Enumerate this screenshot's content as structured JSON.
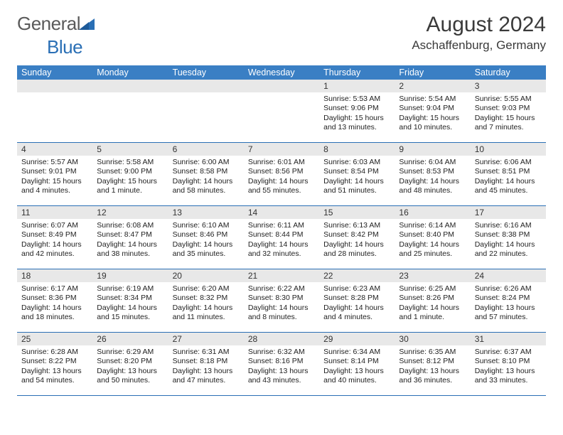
{
  "logo": {
    "text1": "General",
    "text2": "Blue"
  },
  "title": "August 2024",
  "subtitle": "Aschaffenburg, Germany",
  "colors": {
    "header_bg": "#3a7fc4",
    "header_fg": "#ffffff",
    "daystrip_bg": "#e8e8e8",
    "border": "#2a6fb5",
    "logo_gray": "#5a5a5a",
    "logo_blue": "#2a6fb5",
    "text": "#222222"
  },
  "day_names": [
    "Sunday",
    "Monday",
    "Tuesday",
    "Wednesday",
    "Thursday",
    "Friday",
    "Saturday"
  ],
  "weeks": [
    [
      {
        "num": "",
        "sunrise": "",
        "sunset": "",
        "daylight": ""
      },
      {
        "num": "",
        "sunrise": "",
        "sunset": "",
        "daylight": ""
      },
      {
        "num": "",
        "sunrise": "",
        "sunset": "",
        "daylight": ""
      },
      {
        "num": "",
        "sunrise": "",
        "sunset": "",
        "daylight": ""
      },
      {
        "num": "1",
        "sunrise": "Sunrise: 5:53 AM",
        "sunset": "Sunset: 9:06 PM",
        "daylight": "Daylight: 15 hours and 13 minutes."
      },
      {
        "num": "2",
        "sunrise": "Sunrise: 5:54 AM",
        "sunset": "Sunset: 9:04 PM",
        "daylight": "Daylight: 15 hours and 10 minutes."
      },
      {
        "num": "3",
        "sunrise": "Sunrise: 5:55 AM",
        "sunset": "Sunset: 9:03 PM",
        "daylight": "Daylight: 15 hours and 7 minutes."
      }
    ],
    [
      {
        "num": "4",
        "sunrise": "Sunrise: 5:57 AM",
        "sunset": "Sunset: 9:01 PM",
        "daylight": "Daylight: 15 hours and 4 minutes."
      },
      {
        "num": "5",
        "sunrise": "Sunrise: 5:58 AM",
        "sunset": "Sunset: 9:00 PM",
        "daylight": "Daylight: 15 hours and 1 minute."
      },
      {
        "num": "6",
        "sunrise": "Sunrise: 6:00 AM",
        "sunset": "Sunset: 8:58 PM",
        "daylight": "Daylight: 14 hours and 58 minutes."
      },
      {
        "num": "7",
        "sunrise": "Sunrise: 6:01 AM",
        "sunset": "Sunset: 8:56 PM",
        "daylight": "Daylight: 14 hours and 55 minutes."
      },
      {
        "num": "8",
        "sunrise": "Sunrise: 6:03 AM",
        "sunset": "Sunset: 8:54 PM",
        "daylight": "Daylight: 14 hours and 51 minutes."
      },
      {
        "num": "9",
        "sunrise": "Sunrise: 6:04 AM",
        "sunset": "Sunset: 8:53 PM",
        "daylight": "Daylight: 14 hours and 48 minutes."
      },
      {
        "num": "10",
        "sunrise": "Sunrise: 6:06 AM",
        "sunset": "Sunset: 8:51 PM",
        "daylight": "Daylight: 14 hours and 45 minutes."
      }
    ],
    [
      {
        "num": "11",
        "sunrise": "Sunrise: 6:07 AM",
        "sunset": "Sunset: 8:49 PM",
        "daylight": "Daylight: 14 hours and 42 minutes."
      },
      {
        "num": "12",
        "sunrise": "Sunrise: 6:08 AM",
        "sunset": "Sunset: 8:47 PM",
        "daylight": "Daylight: 14 hours and 38 minutes."
      },
      {
        "num": "13",
        "sunrise": "Sunrise: 6:10 AM",
        "sunset": "Sunset: 8:46 PM",
        "daylight": "Daylight: 14 hours and 35 minutes."
      },
      {
        "num": "14",
        "sunrise": "Sunrise: 6:11 AM",
        "sunset": "Sunset: 8:44 PM",
        "daylight": "Daylight: 14 hours and 32 minutes."
      },
      {
        "num": "15",
        "sunrise": "Sunrise: 6:13 AM",
        "sunset": "Sunset: 8:42 PM",
        "daylight": "Daylight: 14 hours and 28 minutes."
      },
      {
        "num": "16",
        "sunrise": "Sunrise: 6:14 AM",
        "sunset": "Sunset: 8:40 PM",
        "daylight": "Daylight: 14 hours and 25 minutes."
      },
      {
        "num": "17",
        "sunrise": "Sunrise: 6:16 AM",
        "sunset": "Sunset: 8:38 PM",
        "daylight": "Daylight: 14 hours and 22 minutes."
      }
    ],
    [
      {
        "num": "18",
        "sunrise": "Sunrise: 6:17 AM",
        "sunset": "Sunset: 8:36 PM",
        "daylight": "Daylight: 14 hours and 18 minutes."
      },
      {
        "num": "19",
        "sunrise": "Sunrise: 6:19 AM",
        "sunset": "Sunset: 8:34 PM",
        "daylight": "Daylight: 14 hours and 15 minutes."
      },
      {
        "num": "20",
        "sunrise": "Sunrise: 6:20 AM",
        "sunset": "Sunset: 8:32 PM",
        "daylight": "Daylight: 14 hours and 11 minutes."
      },
      {
        "num": "21",
        "sunrise": "Sunrise: 6:22 AM",
        "sunset": "Sunset: 8:30 PM",
        "daylight": "Daylight: 14 hours and 8 minutes."
      },
      {
        "num": "22",
        "sunrise": "Sunrise: 6:23 AM",
        "sunset": "Sunset: 8:28 PM",
        "daylight": "Daylight: 14 hours and 4 minutes."
      },
      {
        "num": "23",
        "sunrise": "Sunrise: 6:25 AM",
        "sunset": "Sunset: 8:26 PM",
        "daylight": "Daylight: 14 hours and 1 minute."
      },
      {
        "num": "24",
        "sunrise": "Sunrise: 6:26 AM",
        "sunset": "Sunset: 8:24 PM",
        "daylight": "Daylight: 13 hours and 57 minutes."
      }
    ],
    [
      {
        "num": "25",
        "sunrise": "Sunrise: 6:28 AM",
        "sunset": "Sunset: 8:22 PM",
        "daylight": "Daylight: 13 hours and 54 minutes."
      },
      {
        "num": "26",
        "sunrise": "Sunrise: 6:29 AM",
        "sunset": "Sunset: 8:20 PM",
        "daylight": "Daylight: 13 hours and 50 minutes."
      },
      {
        "num": "27",
        "sunrise": "Sunrise: 6:31 AM",
        "sunset": "Sunset: 8:18 PM",
        "daylight": "Daylight: 13 hours and 47 minutes."
      },
      {
        "num": "28",
        "sunrise": "Sunrise: 6:32 AM",
        "sunset": "Sunset: 8:16 PM",
        "daylight": "Daylight: 13 hours and 43 minutes."
      },
      {
        "num": "29",
        "sunrise": "Sunrise: 6:34 AM",
        "sunset": "Sunset: 8:14 PM",
        "daylight": "Daylight: 13 hours and 40 minutes."
      },
      {
        "num": "30",
        "sunrise": "Sunrise: 6:35 AM",
        "sunset": "Sunset: 8:12 PM",
        "daylight": "Daylight: 13 hours and 36 minutes."
      },
      {
        "num": "31",
        "sunrise": "Sunrise: 6:37 AM",
        "sunset": "Sunset: 8:10 PM",
        "daylight": "Daylight: 13 hours and 33 minutes."
      }
    ]
  ]
}
